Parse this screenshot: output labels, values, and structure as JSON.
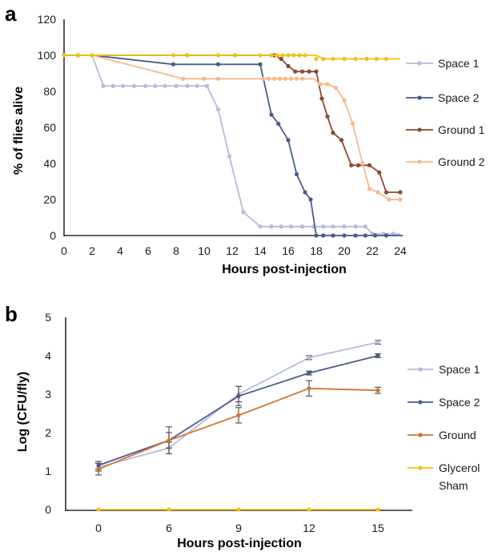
{
  "chart_data": [
    {
      "panel": "a",
      "type": "line",
      "xlabel": "Hours post-injection",
      "ylabel": "% of flies alive",
      "xlim": [
        0,
        24
      ],
      "ylim": [
        0,
        120
      ],
      "xticks": [
        "0",
        "2",
        "4",
        "6",
        "8",
        "10",
        "12",
        "14",
        "16",
        "18",
        "20",
        "22",
        "24"
      ],
      "yticks": [
        "0",
        "20",
        "40",
        "60",
        "80",
        "100",
        "120"
      ],
      "grid": false,
      "legend_position": "right",
      "series": [
        {
          "name": "Space 1",
          "color": "#b7bad9",
          "points": [
            [
              0,
              100
            ],
            [
              1,
              100
            ],
            [
              2,
              100
            ],
            [
              2.8,
              83
            ],
            [
              3.5,
              83
            ],
            [
              4.2,
              83
            ],
            [
              5,
              83
            ],
            [
              5.8,
              83
            ],
            [
              6.5,
              83
            ],
            [
              7.2,
              83
            ],
            [
              8,
              83
            ],
            [
              8.8,
              83
            ],
            [
              9.5,
              83
            ],
            [
              10.2,
              83
            ],
            [
              11,
              70
            ],
            [
              11.8,
              44
            ],
            [
              12.8,
              13
            ],
            [
              14,
              5
            ],
            [
              14.8,
              5
            ],
            [
              15.5,
              5
            ],
            [
              16.2,
              5
            ],
            [
              17,
              5
            ],
            [
              17.8,
              5
            ],
            [
              18.5,
              5
            ],
            [
              19.2,
              5
            ],
            [
              20,
              5
            ],
            [
              20.8,
              5
            ],
            [
              21.5,
              5
            ],
            [
              22,
              1
            ],
            [
              22.8,
              1
            ],
            [
              23.5,
              1
            ],
            [
              24,
              1
            ]
          ],
          "markers": [
            [
              0,
              100
            ],
            [
              1,
              100
            ],
            [
              2,
              100
            ],
            [
              2.8,
              83
            ],
            [
              3.5,
              83
            ],
            [
              4.2,
              83
            ],
            [
              5,
              83
            ],
            [
              5.8,
              83
            ],
            [
              6.5,
              83
            ],
            [
              7.2,
              83
            ],
            [
              8,
              83
            ],
            [
              8.8,
              83
            ],
            [
              9.5,
              83
            ],
            [
              10.2,
              83
            ],
            [
              11,
              70
            ],
            [
              11.8,
              44
            ],
            [
              12.8,
              13
            ],
            [
              14,
              5
            ],
            [
              14.8,
              5
            ],
            [
              15.5,
              5
            ],
            [
              16.2,
              5
            ],
            [
              17,
              5
            ],
            [
              17.8,
              5
            ],
            [
              18.5,
              5
            ],
            [
              19.2,
              5
            ],
            [
              20,
              5
            ],
            [
              20.8,
              5
            ],
            [
              21.5,
              5
            ],
            [
              22,
              1
            ],
            [
              22.8,
              1
            ],
            [
              23.5,
              1
            ]
          ]
        },
        {
          "name": "Space 2",
          "color": "#4a5a8f",
          "points": [
            [
              0,
              100
            ],
            [
              1,
              100
            ],
            [
              2,
              100
            ],
            [
              7.8,
              95
            ],
            [
              11,
              95
            ],
            [
              14,
              95
            ],
            [
              14.8,
              67
            ],
            [
              15.3,
              62
            ],
            [
              16,
              53
            ],
            [
              16.6,
              34
            ],
            [
              17.2,
              24
            ],
            [
              17.6,
              20
            ],
            [
              18,
              0
            ],
            [
              24,
              0
            ]
          ],
          "markers": [
            [
              0,
              100
            ],
            [
              1,
              100
            ],
            [
              2,
              100
            ],
            [
              7.8,
              95
            ],
            [
              11,
              95
            ],
            [
              14,
              95
            ],
            [
              14.8,
              67
            ],
            [
              15.3,
              62
            ],
            [
              16,
              53
            ],
            [
              16.6,
              34
            ],
            [
              17.2,
              24
            ],
            [
              17.6,
              20
            ],
            [
              18,
              0
            ],
            [
              18.5,
              0
            ],
            [
              19.2,
              0
            ],
            [
              20,
              0
            ],
            [
              20.8,
              0
            ],
            [
              21.5,
              0
            ],
            [
              22.2,
              0
            ],
            [
              23,
              0
            ]
          ]
        },
        {
          "name": "Ground 1",
          "color": "#8a4a2e",
          "points": [
            [
              0,
              100
            ],
            [
              8.8,
              100
            ],
            [
              12.2,
              100
            ],
            [
              14,
              100
            ],
            [
              15,
              100
            ],
            [
              15.5,
              98
            ],
            [
              16,
              94
            ],
            [
              16.5,
              91
            ],
            [
              17,
              91
            ],
            [
              17.5,
              91
            ],
            [
              18,
              91
            ],
            [
              18.4,
              76
            ],
            [
              18.8,
              66
            ],
            [
              19.2,
              57
            ],
            [
              19.8,
              53
            ],
            [
              20.5,
              39
            ],
            [
              21,
              39
            ],
            [
              21.8,
              39
            ],
            [
              22.5,
              35
            ],
            [
              23,
              24
            ],
            [
              24,
              24
            ]
          ],
          "markers": [
            [
              0,
              100
            ],
            [
              8.8,
              100
            ],
            [
              12.2,
              100
            ],
            [
              15,
              100
            ],
            [
              15.5,
              98
            ],
            [
              16,
              94
            ],
            [
              16.5,
              91
            ],
            [
              17,
              91
            ],
            [
              17.5,
              91
            ],
            [
              18,
              91
            ],
            [
              18.4,
              76
            ],
            [
              18.8,
              66
            ],
            [
              19.2,
              57
            ],
            [
              19.8,
              53
            ],
            [
              20.5,
              39
            ],
            [
              21,
              39
            ],
            [
              21.8,
              39
            ],
            [
              22.5,
              35
            ],
            [
              23,
              24
            ],
            [
              24,
              24
            ]
          ]
        },
        {
          "name": "Ground 2",
          "color": "#f6b98a",
          "points": [
            [
              0,
              100
            ],
            [
              2,
              100
            ],
            [
              8.5,
              87
            ],
            [
              10,
              87
            ],
            [
              11,
              87
            ],
            [
              14,
              87
            ],
            [
              16.6,
              87
            ],
            [
              17.8,
              87
            ],
            [
              18.3,
              84
            ],
            [
              18.8,
              84
            ],
            [
              19.4,
              82
            ],
            [
              20,
              75
            ],
            [
              20.6,
              62
            ],
            [
              21.3,
              40
            ],
            [
              21.8,
              26
            ],
            [
              22.4,
              24
            ],
            [
              23.2,
              20
            ],
            [
              24,
              20
            ]
          ],
          "markers": [
            [
              0,
              100
            ],
            [
              2,
              100
            ],
            [
              8.5,
              87
            ],
            [
              10,
              87
            ],
            [
              11,
              87
            ],
            [
              14.2,
              87
            ],
            [
              14.6,
              87
            ],
            [
              15,
              87
            ],
            [
              15.4,
              87
            ],
            [
              15.8,
              87
            ],
            [
              16.2,
              87
            ],
            [
              16.6,
              87
            ],
            [
              17,
              87
            ],
            [
              18.3,
              84
            ],
            [
              18.8,
              84
            ],
            [
              19.4,
              82
            ],
            [
              20,
              75
            ],
            [
              20.6,
              62
            ],
            [
              21.3,
              40
            ],
            [
              21.8,
              26
            ],
            [
              22.4,
              24
            ],
            [
              23.2,
              20
            ],
            [
              24,
              20
            ]
          ]
        },
        {
          "name": "",
          "color": "#f2c114",
          "points": [
            [
              0,
              100
            ],
            [
              18,
              100
            ],
            [
              18.5,
              98
            ],
            [
              24,
              98
            ]
          ],
          "markers": [
            [
              0,
              100
            ],
            [
              1,
              100
            ],
            [
              2,
              100
            ],
            [
              7.8,
              100
            ],
            [
              8.8,
              100
            ],
            [
              11,
              100
            ],
            [
              12.2,
              100
            ],
            [
              14,
              100
            ],
            [
              14.8,
              100
            ],
            [
              15.2,
              100
            ],
            [
              15.6,
              100
            ],
            [
              16,
              100
            ],
            [
              16.4,
              100
            ],
            [
              16.8,
              100
            ],
            [
              17.2,
              100
            ],
            [
              18,
              98
            ],
            [
              18.5,
              98
            ],
            [
              19.2,
              98
            ],
            [
              20,
              98
            ],
            [
              20.8,
              98
            ],
            [
              21.6,
              98
            ],
            [
              22.3,
              98
            ],
            [
              23,
              98
            ]
          ]
        }
      ]
    },
    {
      "panel": "b",
      "type": "line",
      "xlabel": "Hours post-injection",
      "ylabel": "Log (CFU/fly)",
      "categories": [
        "0",
        "6",
        "9",
        "12",
        "15"
      ],
      "ylim": [
        0,
        5
      ],
      "yticks": [
        "0",
        "1",
        "2",
        "3",
        "4",
        "5"
      ],
      "grid": false,
      "legend_position": "right",
      "series": [
        {
          "name": "Space 1",
          "color": "#b7bad9",
          "values": [
            1.1,
            1.6,
            3.0,
            3.95,
            4.35
          ],
          "errors": [
            0.1,
            0.15,
            0.2,
            0.05,
            0.05
          ]
        },
        {
          "name": "Space 2",
          "color": "#4a5a8f",
          "values": [
            1.15,
            1.8,
            2.95,
            3.55,
            4.0
          ],
          "errors": [
            0.1,
            0.35,
            0.25,
            0.05,
            0.05
          ]
        },
        {
          "name": "Ground",
          "color": "#d4742c",
          "values": [
            1.05,
            1.8,
            2.45,
            3.15,
            3.1
          ],
          "errors": [
            0.15,
            0.2,
            0.2,
            0.2,
            0.08
          ]
        },
        {
          "name": "Glycerol\nSham",
          "color": "#f2c114",
          "values": [
            0,
            0,
            0,
            0,
            0
          ],
          "errors": [
            0,
            0,
            0,
            0,
            0
          ]
        }
      ]
    }
  ],
  "panels": {
    "a": {
      "letter": "a"
    },
    "b": {
      "letter": "b"
    }
  }
}
